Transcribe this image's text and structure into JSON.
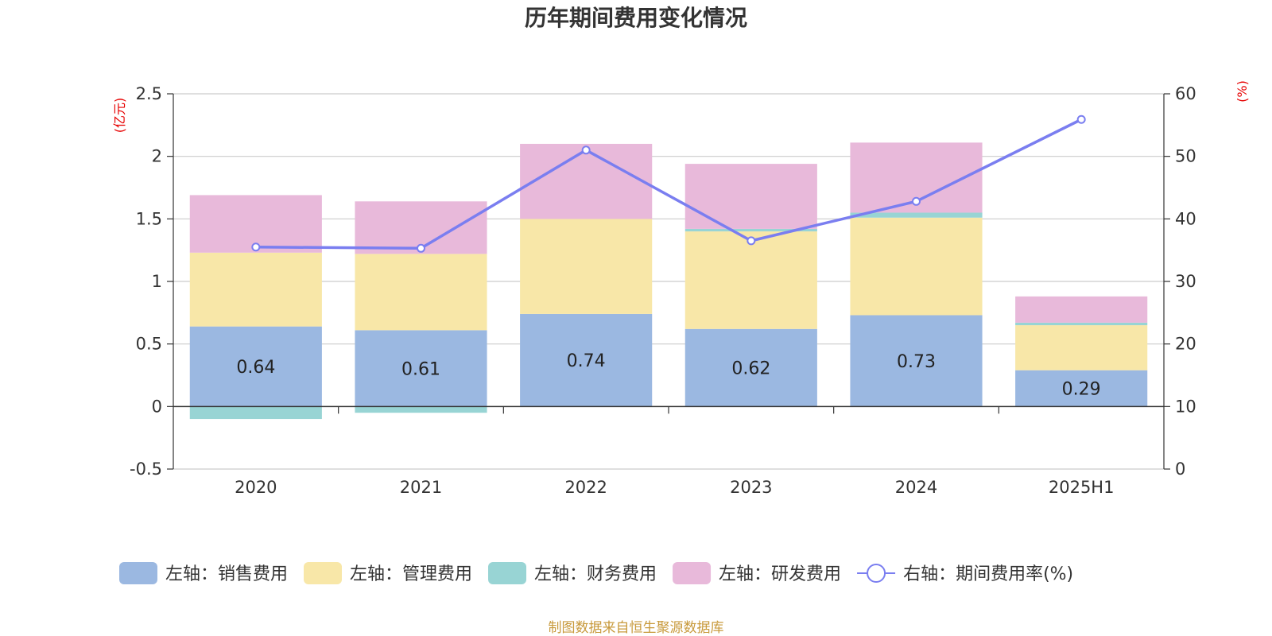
{
  "chart_data": {
    "type": "bar",
    "title": "历年期间费用变化情况",
    "categories": [
      "2020",
      "2021",
      "2022",
      "2023",
      "2024",
      "2025H1"
    ],
    "left_axis": {
      "unit": "(亿元)",
      "ylim": [
        -0.5,
        2.5
      ],
      "ticks": [
        "-0.5",
        "0",
        "0.5",
        "1",
        "1.5",
        "2",
        "2.5"
      ]
    },
    "right_axis": {
      "unit": "(%)",
      "ylim": [
        0,
        60
      ],
      "ticks": [
        "0",
        "10",
        "20",
        "30",
        "40",
        "50",
        "60"
      ]
    },
    "series": [
      {
        "name": "左轴：销售费用",
        "type": "bar",
        "axis": "left",
        "color": "#9bb8e1",
        "values": [
          0.64,
          0.61,
          0.74,
          0.62,
          0.73,
          0.29
        ],
        "labels": [
          "0.64",
          "0.61",
          "0.74",
          "0.62",
          "0.73",
          "0.29"
        ]
      },
      {
        "name": "左轴：管理费用",
        "type": "bar",
        "axis": "left",
        "color": "#f8e7a8",
        "values": [
          0.59,
          0.61,
          0.76,
          0.78,
          0.78,
          0.36
        ]
      },
      {
        "name": "左轴：财务费用",
        "type": "bar",
        "axis": "left",
        "color": "#98d4d4",
        "values": [
          -0.1,
          -0.05,
          0.0,
          0.02,
          0.04,
          0.02
        ]
      },
      {
        "name": "左轴：研发费用",
        "type": "bar",
        "axis": "left",
        "color": "#e8b9da",
        "values": [
          0.46,
          0.42,
          0.6,
          0.52,
          0.56,
          0.21
        ]
      },
      {
        "name": "右轴：期间费用率(%)",
        "type": "line",
        "axis": "right",
        "color": "#7a7ef0",
        "values": [
          35.5,
          35.3,
          51.0,
          36.5,
          42.8,
          55.9
        ]
      }
    ],
    "grid": true,
    "legend": "bottom"
  },
  "source_text": "制图数据来自恒生聚源数据库"
}
